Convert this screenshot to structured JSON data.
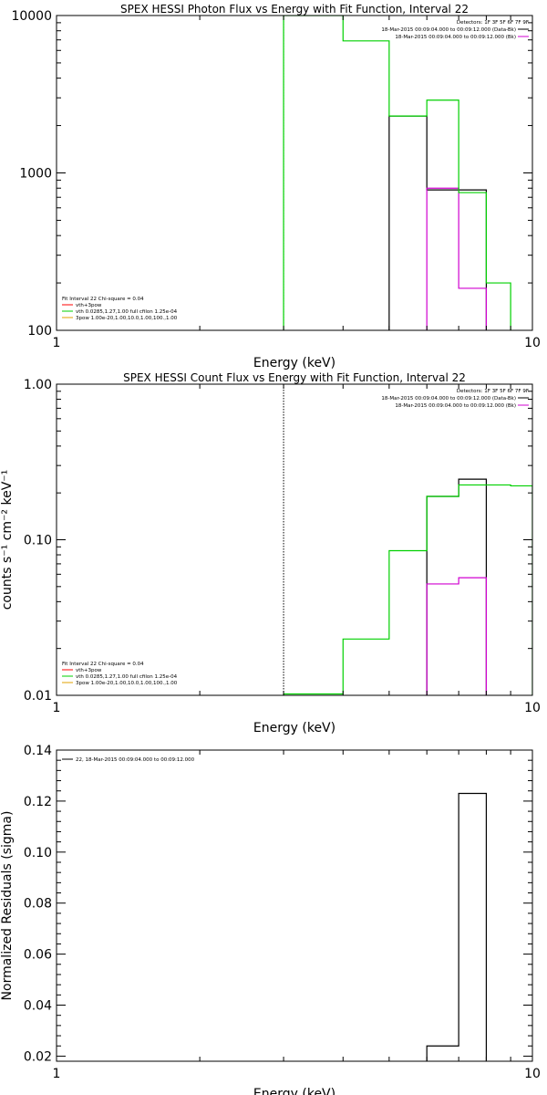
{
  "chart_data": [
    {
      "type": "line",
      "title": "SPEX HESSI Photon Flux vs Energy with Fit Function, Interval 22",
      "xlabel": "Energy (keV)",
      "ylabel": "",
      "xscale": "log",
      "yscale": "log",
      "xlim": [
        1,
        10
      ],
      "ylim": [
        100,
        10000
      ],
      "x_ticks": [
        {
          "v": 1,
          "label": "1"
        },
        {
          "v": 10,
          "label": "10"
        }
      ],
      "y_ticks": [
        {
          "v": 100,
          "label": "100"
        },
        {
          "v": 1000,
          "label": "1000"
        },
        {
          "v": 10000,
          "label": "10000"
        }
      ],
      "vline": {
        "x": 3.0,
        "style": "dotted",
        "color": "#00c000"
      },
      "series": [
        {
          "name": "18-Mar-2015 00:09:04.000 to 00:09:12.000 (Data-Bk)",
          "color": "#000000",
          "edges": [
            5.0,
            6.0,
            7.0,
            8.0
          ],
          "values": [
            2300,
            780,
            780
          ]
        },
        {
          "name": "18-Mar-2015 00:09:04.000 to 00:09:12.000 (Bk)",
          "color": "#d000d0",
          "edges": [
            6.0,
            7.0,
            8.0
          ],
          "values": [
            800,
            185
          ]
        },
        {
          "name": "vth+3pow",
          "color": "#00d000",
          "edges": [
            3.0,
            4.0,
            5.0,
            6.0,
            7.0,
            8.0,
            9.0
          ],
          "values": [
            100000,
            6900,
            2300,
            2900,
            750,
            200
          ]
        }
      ],
      "detectors_label": "Detectors: 1F 3F 5F 6F 7F 9F",
      "legend_right": [
        {
          "text": "18-Mar-2015 00:09:04.000 to 00:09:12.000 (Data-Bk)",
          "color": "#000000"
        },
        {
          "text": "18-Mar-2015 00:09:04.000 to 00:09:12.000 (Bk)",
          "color": "#d000d0"
        }
      ],
      "legend_left": [
        {
          "text": "Fit Interval 22    Chi-square = 0.04",
          "color": ""
        },
        {
          "text": "vth+3pow",
          "color": "#ff0000"
        },
        {
          "text": "vth 0.0285,1.27,1.00   full cfilon 1.25e-04",
          "color": "#00d000"
        },
        {
          "text": "3pow 1.00e-20,1.00,10.0,1.00,100.,1.00",
          "color": "#e0a000"
        }
      ]
    },
    {
      "type": "line",
      "title": "SPEX HESSI Count Flux vs Energy with Fit Function, Interval 22",
      "xlabel": "Energy (keV)",
      "ylabel": "counts s⁻¹ cm⁻² keV⁻¹",
      "xscale": "log",
      "yscale": "log",
      "xlim": [
        1,
        10
      ],
      "ylim": [
        0.01,
        1.0
      ],
      "x_ticks": [
        {
          "v": 1,
          "label": "1"
        },
        {
          "v": 10,
          "label": "10"
        }
      ],
      "y_ticks": [
        {
          "v": 0.01,
          "label": "0.01"
        },
        {
          "v": 0.1,
          "label": "0.10"
        },
        {
          "v": 1.0,
          "label": "1.00"
        }
      ],
      "vline": {
        "x": 3.0,
        "style": "dotted",
        "color": "#000000"
      },
      "series": [
        {
          "name": "18-Mar-2015 00:09:04.000 to 00:09:12.000 (Data-Bk)",
          "color": "#000000",
          "edges": [
            6.0,
            7.0,
            8.0
          ],
          "values": [
            0.19,
            0.245
          ]
        },
        {
          "name": "18-Mar-2015 00:09:04.000 to 00:09:12.000 (Bk)",
          "color": "#d000d0",
          "edges": [
            6.0,
            7.0,
            8.0
          ],
          "values": [
            0.052,
            0.057
          ]
        },
        {
          "name": "vth+3pow",
          "color": "#00d000",
          "edges": [
            3.0,
            4.0,
            5.0,
            6.0,
            7.0,
            8.0,
            9.0,
            10.0
          ],
          "values": [
            0.0102,
            0.023,
            0.085,
            0.19,
            0.225,
            0.225,
            0.222
          ]
        }
      ],
      "detectors_label": "Detectors: 1F 3F 5F 6F 7F 9F",
      "legend_right": [
        {
          "text": "18-Mar-2015 00:09:04.000 to 00:09:12.000 (Data-Bk)",
          "color": "#000000"
        },
        {
          "text": "18-Mar-2015 00:09:04.000 to 00:09:12.000 (Bk)",
          "color": "#d000d0"
        }
      ],
      "legend_left": [
        {
          "text": "Fit Interval 22    Chi-square = 0.04",
          "color": ""
        },
        {
          "text": "vth+3pow",
          "color": "#ff0000"
        },
        {
          "text": "vth 0.0285,1.27,1.00   full cfilon 1.25e-04",
          "color": "#00d000"
        },
        {
          "text": "3pow 1.00e-20,1.00,10.0,1.00,100.,1.00",
          "color": "#e0a000"
        }
      ]
    },
    {
      "type": "line",
      "title": "",
      "xlabel": "Energy (keV)",
      "ylabel": "Normalized Residuals (sigma)",
      "xscale": "log",
      "yscale": "linear",
      "xlim": [
        1,
        10
      ],
      "ylim": [
        0.018,
        0.14
      ],
      "x_ticks": [
        {
          "v": 1,
          "label": "1"
        },
        {
          "v": 10,
          "label": "10"
        }
      ],
      "y_ticks": [
        {
          "v": 0.02,
          "label": "0.02"
        },
        {
          "v": 0.04,
          "label": "0.04"
        },
        {
          "v": 0.06,
          "label": "0.06"
        },
        {
          "v": 0.08,
          "label": "0.08"
        },
        {
          "v": 0.1,
          "label": "0.10"
        },
        {
          "v": 0.12,
          "label": "0.12"
        },
        {
          "v": 0.14,
          "label": "0.14"
        }
      ],
      "series": [
        {
          "name": "22, 18-Mar-2015 00:09:04.000 to 00:09:12.000",
          "color": "#000000",
          "edges": [
            6.0,
            7.0,
            8.0
          ],
          "values": [
            0.024,
            0.123
          ]
        }
      ],
      "legend_left": [
        {
          "text": "22, 18-Mar-2015 00:09:04.000 to 00:09:12.000",
          "color": "#000000"
        }
      ]
    }
  ]
}
